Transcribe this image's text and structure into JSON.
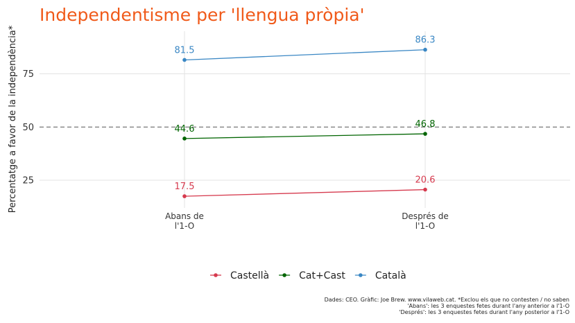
{
  "chart_data": {
    "type": "line",
    "title": "Independentisme per 'llengua pròpia'",
    "title_color": "#f05a1a",
    "xlabel": "",
    "ylabel": "Percentatge a favor de la independència*",
    "categories": [
      [
        "Abans de",
        "l'1-O"
      ],
      [
        "Després de",
        "l'1-O"
      ]
    ],
    "ylim": [
      12,
      95
    ],
    "yticks": [
      25,
      50,
      75
    ],
    "reference_line": {
      "y": 50,
      "style": "dashed"
    },
    "grid": true,
    "legend_position": "bottom",
    "series": [
      {
        "name": "Castellà",
        "color": "#d63a4e",
        "values": [
          17.5,
          20.6
        ],
        "labels": [
          "17.5",
          "20.6"
        ]
      },
      {
        "name": "Cat+Cast",
        "color": "#006400",
        "values": [
          44.6,
          46.8
        ],
        "labels": [
          "44.6",
          "46.8"
        ]
      },
      {
        "name": "Català",
        "color": "#3a87c4",
        "values": [
          81.5,
          86.3
        ],
        "labels": [
          "81.5",
          "86.3"
        ]
      }
    ],
    "caption": [
      "Dades: CEO. Gràfic: Joe Brew. www.vilaweb.cat. *Exclou els que no contesten / no saben",
      "'Abans': les 3 enquestes fetes durant l'any anterior a l'1-O",
      "'Després': les 3 enquestes fetes durant l'any posterior a l'1-O"
    ]
  }
}
